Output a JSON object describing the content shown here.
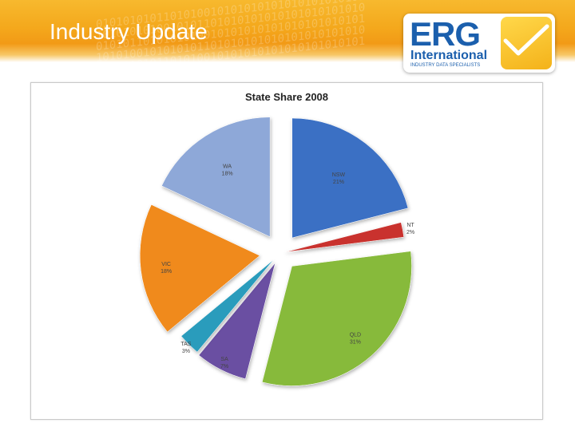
{
  "slide": {
    "title": "Industry Update",
    "logo_word": "ERG",
    "logo_sub": "International",
    "logo_tagline": "INDUSTRY DATA SPECIALISTS",
    "brand_orange": "#f4a81c",
    "brand_blue": "#1b5fad"
  },
  "chart_data": {
    "type": "pie",
    "title": "State Share 2008",
    "categories": [
      "NSW",
      "NT",
      "QLD",
      "SA",
      "TAS",
      "VIC",
      "WA"
    ],
    "values": [
      21,
      2,
      31,
      7,
      3,
      18,
      18
    ],
    "labels": [
      "21%",
      "2%",
      "31%",
      "7%",
      "3%",
      "18%",
      "18%"
    ],
    "colors": [
      "#3a6fc4",
      "#c9322f",
      "#87ba3a",
      "#6b4fa2",
      "#2a9cbc",
      "#f08a1e",
      "#8ea8d8"
    ],
    "exploded": true,
    "legend": "none"
  }
}
